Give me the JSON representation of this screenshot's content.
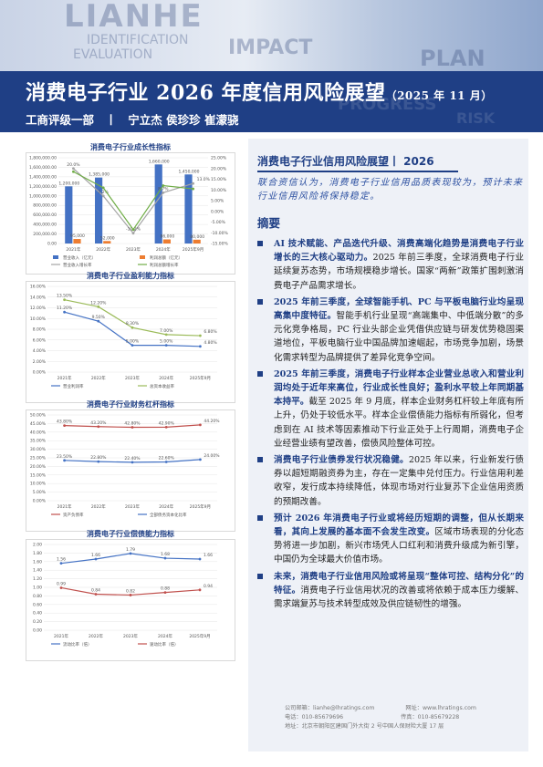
{
  "header": {
    "watermark": [
      "LIANHE",
      "IDENTIFICATION",
      "EVALUATION",
      "IMPACT",
      "PLAN",
      "PROGRESS",
      "RISK"
    ],
    "title": "消费电子行业 2026 年度信用风险展望",
    "title_date": "（2025 年 11 月）",
    "department": "工商评级一部",
    "separator": "丨",
    "authors": "宁立杰  侯珍珍  崔濛骁"
  },
  "charts": [
    {
      "title": "消费电子行业成长性指标",
      "chart_data": {
        "type": "bar",
        "categories": [
          "2021年",
          "2022年",
          "2023年",
          "2024年",
          "2025年9月"
        ],
        "yticks_left": [
          "0.00",
          "200,000.00",
          "400,000.00",
          "600,000.00",
          "800,000.00",
          "1,000,000.00",
          "1,200,000.00",
          "1,400,000.00",
          "1,600,000.00",
          "1,800,000.00"
        ],
        "yticks_right": [
          "-15.00%",
          "-10.00%",
          "-5.00%",
          "0.00%",
          "5.00%",
          "10.00%",
          "15.00%",
          "20.00%",
          "25.00%"
        ],
        "series": [
          {
            "name": "营业收入（亿元）",
            "kind": "bar",
            "color": "#4472c4",
            "values": [
              1200000,
              1385000,
              null,
              1660000,
              1450000
            ],
            "labels": [
              "1,200,000",
              "1,385,000",
              "",
              "1,660,000",
              "1,450,000"
            ]
          },
          {
            "name": "利润总额（亿元）",
            "kind": "bar",
            "color": "#ed7d31",
            "values": [
              95000,
              52000,
              null,
              86000,
              80000
            ],
            "labels": [
              "95,000",
              "52,000",
              "",
              "86,000",
              "80,000"
            ]
          },
          {
            "name": "营业收入增长率",
            "kind": "line",
            "color": "#a5a5a5",
            "values": [
              20.0,
              7.2,
              -10.2,
              8.7,
              13.0
            ],
            "labels": [
              "20.0%",
              "7.2%",
              "-10.2%",
              "8.7%",
              "13.0%"
            ]
          },
          {
            "name": "利润总额增长率",
            "kind": "line",
            "color": "#70ad47",
            "values": [
              18.5,
              11.0,
              -8.5,
              12.0,
              10.5
            ],
            "labels": [
              "",
              "",
              "",
              "",
              ""
            ]
          }
        ]
      }
    },
    {
      "title": "消费电子行业盈利能力指标",
      "chart_data": {
        "type": "line",
        "categories": [
          "2021年",
          "2022年",
          "2023年",
          "2024年",
          "2025年9月"
        ],
        "yticks": [
          "0.00%",
          "2.00%",
          "4.00%",
          "6.00%",
          "8.00%",
          "10.00%",
          "12.00%",
          "14.00%",
          "16.00%"
        ],
        "series": [
          {
            "name": "营业利润率",
            "color": "#4472c4",
            "values": [
              11.2,
              9.5,
              5.0,
              5.0,
              4.8
            ],
            "labels": [
              "11.20%",
              "9.50%",
              "5.00%",
              "5.00%",
              "4.80%"
            ]
          },
          {
            "name": "总资本收益率",
            "color": "#9bbb59",
            "values": [
              13.5,
              12.2,
              8.3,
              7.0,
              6.8
            ],
            "labels": [
              "13.50%",
              "12.20%",
              "8.30%",
              "7.00%",
              "6.80%"
            ]
          }
        ]
      }
    },
    {
      "title": "消费电子行业财务杠杆指标",
      "chart_data": {
        "type": "line",
        "categories": [
          "2021年",
          "2022年",
          "2023年",
          "2024年",
          "2025年9月"
        ],
        "yticks": [
          "0.00%",
          "5.00%",
          "10.00%",
          "15.00%",
          "20.00%",
          "25.00%",
          "30.00%",
          "35.00%",
          "40.00%",
          "45.00%",
          "50.00%"
        ],
        "series": [
          {
            "name": "资产负债率",
            "color": "#c0504d",
            "values": [
              43.8,
              43.2,
              42.8,
              42.9,
              44.2
            ],
            "labels": [
              "43.80%",
              "43.20%",
              "42.80%",
              "42.90%",
              "44.20%"
            ]
          },
          {
            "name": "全部债务资本化比率",
            "color": "#4472c4",
            "values": [
              23.5,
              22.8,
              22.4,
              22.6,
              24.0
            ],
            "labels": [
              "23.50%",
              "22.80%",
              "22.40%",
              "22.60%",
              "24.00%"
            ]
          }
        ]
      }
    },
    {
      "title": "消费电子行业偿债能力指标",
      "chart_data": {
        "type": "line",
        "categories": [
          "2021年",
          "2022年",
          "2023年",
          "2024年",
          "2025年9月"
        ],
        "yticks": [
          "0.00",
          "0.20",
          "0.40",
          "0.60",
          "0.80",
          "1.00",
          "1.20",
          "1.40",
          "1.60",
          "1.80",
          "2.00"
        ],
        "series": [
          {
            "name": "流动比率（倍）",
            "color": "#4472c4",
            "values": [
              1.56,
              1.66,
              1.79,
              1.68,
              1.66
            ],
            "labels": [
              "1.56",
              "1.66",
              "1.79",
              "1.68",
              "1.66"
            ]
          },
          {
            "name": "速动比率（倍）",
            "color": "#c0504d",
            "values": [
              0.99,
              0.84,
              0.82,
              0.88,
              0.94
            ],
            "labels": [
              "0.99",
              "0.84",
              "0.82",
              "0.88",
              "0.94"
            ]
          }
        ]
      }
    }
  ],
  "right": {
    "section_title": "消费电子行业信用风险展望丨 2026",
    "handwritten": "联合资信认为，消费电子行业信用品质表现较为，预计未来行业信用风险将保持稳定。",
    "abstract_heading": "摘要",
    "bullets": [
      {
        "bold": "AI 技术赋能、产品迭代升级、消费高端化趋势是消费电子行业增长的三大核心驱动力。",
        "text": "2025 年前三季度，全球消费电子行业延续复苏态势，市场规模稳步增长。国家“两新”政策扩围刺激消费电子产品需求增长。"
      },
      {
        "bold": "2025 年前三季度，全球智能手机、PC 与平板电脑行业均呈现高集中度特征。",
        "text": "智能手机行业呈现“高端集中、中低端分散”的多元化竞争格局，PC 行业头部企业凭借供应链与研发优势稳固渠道地位，平板电脑行业中国品牌加速崛起，市场竞争加剧，场景化需求转型为品牌提供了差异化竞争空间。"
      },
      {
        "bold": "2025 年前三季度，消费电子行业样本企业营业总收入和营业利润均处于近年来高位，行业成长性良好；盈利水平较上年同期基本持平。",
        "text": "截至 2025 年 9 月底，样本企业财务杠杆较上年底有所上升，仍处于较低水平。样本企业偿债能力指标有所弱化，但考虑到在 AI 技术等因素推动下行业正处于上行周期，消费电子企业经营业绩有望改善，偿债风险整体可控。"
      },
      {
        "bold": "消费电子行业债券发行状况稳健。",
        "text": "2025 年以来，行业新发行债券以超短期融资券为主，存在一定集中兑付压力。行业信用利差收窄，发行成本持续降低，体现市场对行业复苏下企业信用资质的预期改善。"
      },
      {
        "bold": "预计 2026 年消费电子行业或将经历短期的调整，但从长期来看，其向上发展的基本面不会发生改变。",
        "text": "区域市场表现的分化态势将进一步加剧，新兴市场凭人口红利和消费升级成为新引擎，中国仍为全球最大价值市场。"
      },
      {
        "bold": "未来，消费电子行业信用风险或将呈现“整体可控、结构分化”的特征。",
        "text": "消费电子行业信用状况的改善或将依赖于成本压力缓解、需求端复苏与技术转型成效及供应链韧性的增强。"
      }
    ],
    "footer": {
      "line1_label": "公司邮箱：",
      "email": "lianhe@lhratings.com",
      "line1b_label": "网址：",
      "website": "www.lhratings.com",
      "line2_label": "电话：",
      "phone": "010-85679696",
      "line2b_label": "传真：",
      "fax": "010-85679228",
      "line3_label": "地址：",
      "address": "北京市朝阳区建国门外大街 2 号中国人保财险大厦 17 层"
    }
  }
}
